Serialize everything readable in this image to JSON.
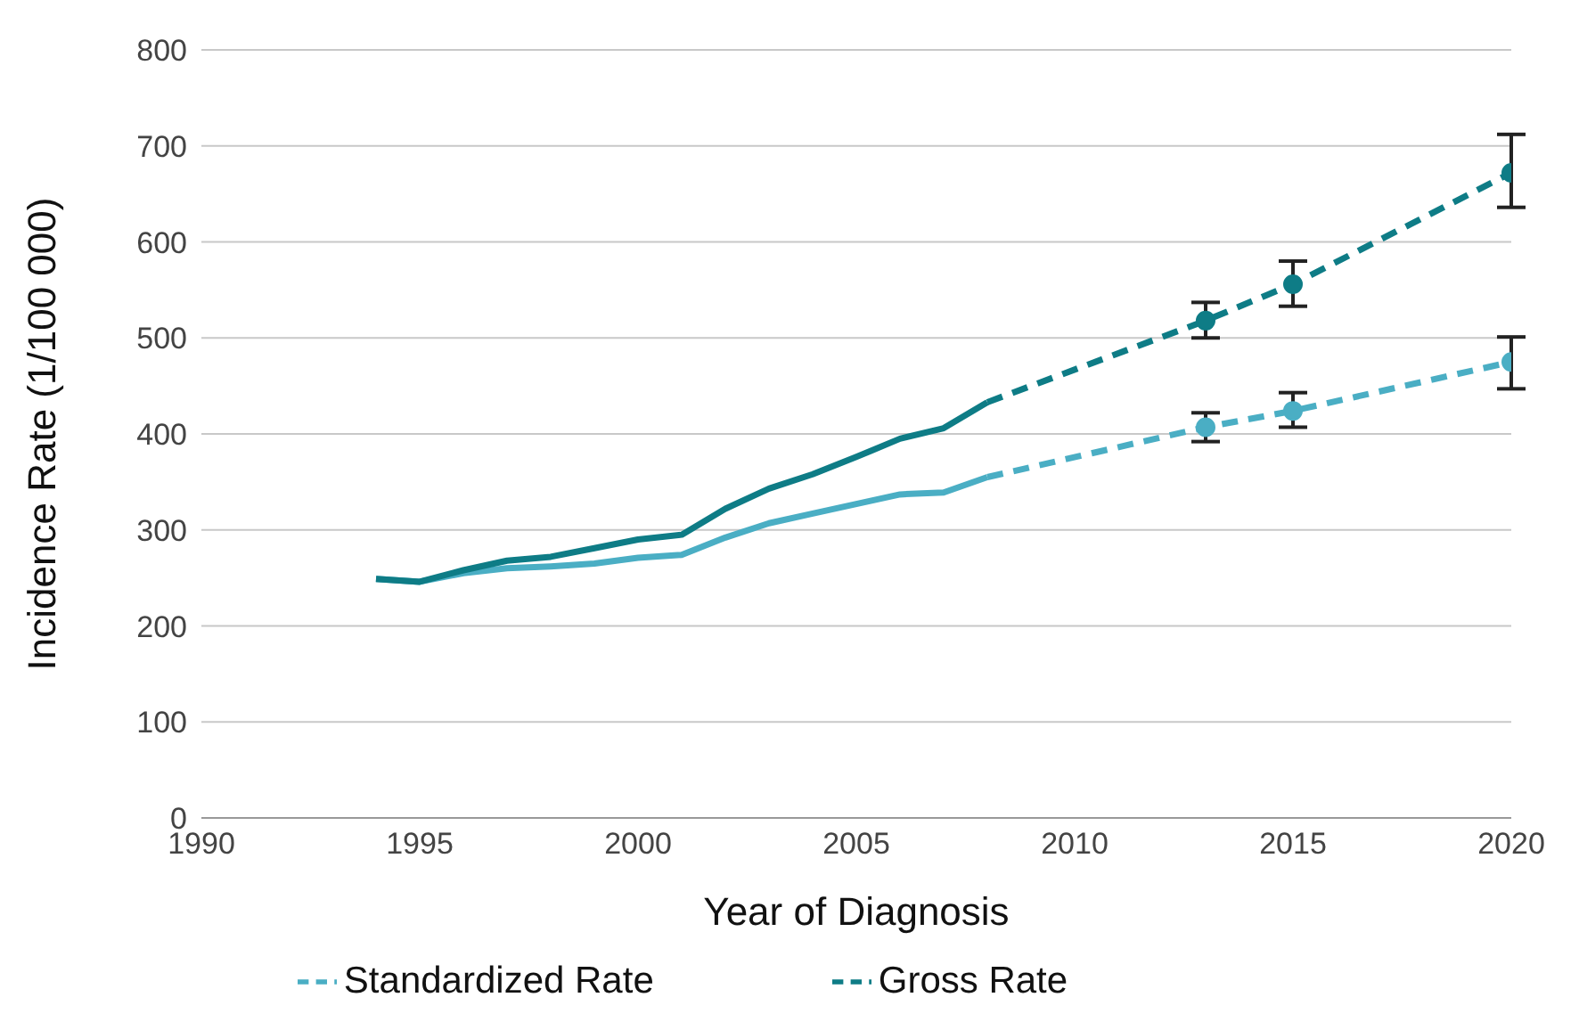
{
  "chart_data": {
    "type": "line",
    "xlabel": "Year of Diagnosis",
    "ylabel": "Incidence Rate (1/100 000)",
    "xlim": [
      1990,
      2020
    ],
    "xticks": [
      1990,
      1995,
      2000,
      2005,
      2010,
      2015,
      2020
    ],
    "ylim": [
      0,
      800
    ],
    "yticks": [
      0,
      100,
      200,
      300,
      400,
      500,
      600,
      700,
      800
    ],
    "grid": "y",
    "legend": "bottom",
    "series": [
      {
        "color": "#4aaec4",
        "line_style": "solid",
        "marker": "none",
        "x": [
          1994,
          1995,
          1996,
          1997,
          1998,
          1999,
          2000,
          2001,
          2002,
          2003,
          2004,
          2005,
          2006,
          2007,
          2008
        ],
        "values": [
          249,
          246,
          255,
          260,
          262,
          265,
          271,
          274,
          292,
          307,
          317,
          327,
          337,
          339,
          355
        ]
      },
      {
        "color": "#0e7c86",
        "line_style": "solid",
        "marker": "none",
        "x": [
          1994,
          1995,
          1996,
          1997,
          1998,
          1999,
          2000,
          2001,
          2002,
          2003,
          2004,
          2005,
          2006,
          2007,
          2008
        ],
        "values": [
          249,
          246,
          258,
          268,
          272,
          281,
          290,
          295,
          322,
          343,
          358,
          376,
          395,
          406,
          433
        ]
      },
      {
        "name": "Standardized Rate",
        "color": "#4aaec4",
        "line_style": "dashed",
        "marker": "circle",
        "x": [
          2008,
          2013,
          2015,
          2020
        ],
        "values": [
          355,
          407,
          424,
          475
        ],
        "errors": [
          null,
          [
            392,
            422
          ],
          [
            407,
            443
          ],
          [
            447,
            501
          ]
        ]
      },
      {
        "name": "Gross Rate",
        "color": "#0e7c86",
        "line_style": "dashed",
        "marker": "circle",
        "x": [
          2008,
          2013,
          2015,
          2020
        ],
        "values": [
          433,
          518,
          556,
          672
        ],
        "errors": [
          null,
          [
            500,
            537
          ],
          [
            533,
            580
          ],
          [
            636,
            712
          ]
        ]
      }
    ]
  }
}
